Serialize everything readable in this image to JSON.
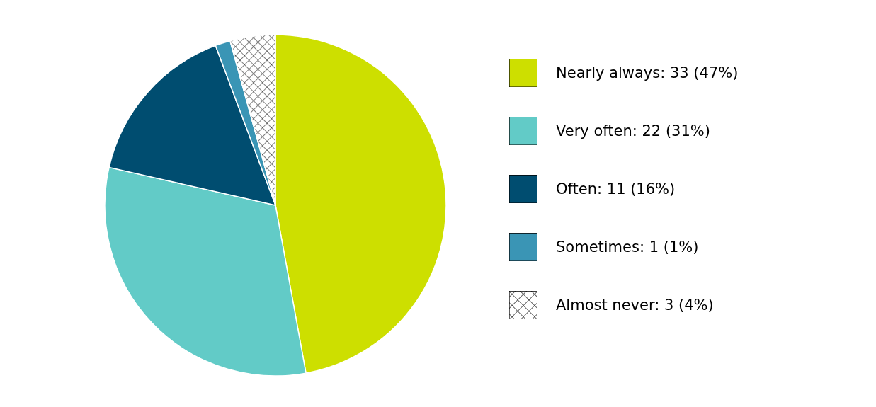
{
  "chart_data": {
    "type": "pie",
    "categories": [
      "Nearly always: 33 (47%)",
      "Very often: 22 (31%)",
      "Often: 11 (16%)",
      "Sometimes: 1 (1%)",
      "Almost never: 3 (4%)"
    ],
    "values": [
      33,
      22,
      11,
      1,
      3
    ],
    "colors": [
      "#cddf00",
      "#62cbc7",
      "#004d70",
      "#3a95b5",
      "#ffffff"
    ],
    "legend": "right"
  }
}
